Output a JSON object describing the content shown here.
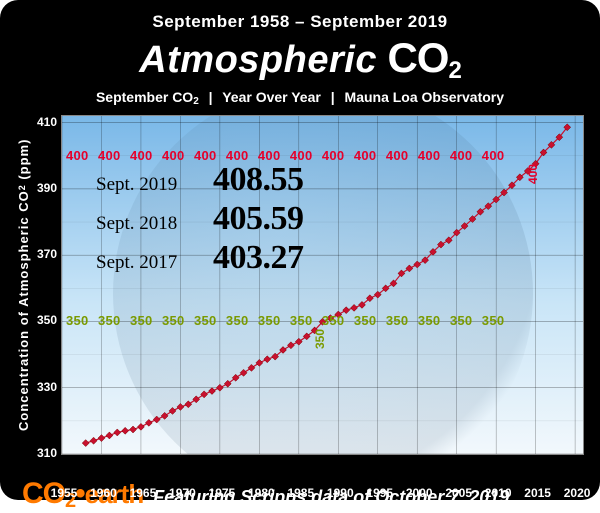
{
  "header": {
    "date_range": "September 1958 – September 2019",
    "title_word": "Atmospheric",
    "title_chem": "CO",
    "title_chem_sub": "2",
    "subtitle_a": "September CO",
    "subtitle_a_sub": "2",
    "subtitle_b": "Year Over Year",
    "subtitle_c": "Mauna Loa Observatory"
  },
  "chart": {
    "type": "scatter-line",
    "ylabel_a": "Concentration  of  Atmospheric  CO",
    "ylabel_sub": "2",
    "ylabel_b": "   (ppm)",
    "xlim": [
      1955,
      2021
    ],
    "ylim": [
      310,
      412
    ],
    "yticks": [
      310,
      330,
      350,
      370,
      390,
      410
    ],
    "xticks": [
      1955,
      1960,
      1965,
      1970,
      1975,
      1980,
      1985,
      1990,
      1995,
      2000,
      2005,
      2010,
      2015,
      2020
    ],
    "grid_color": "rgba(0,0,0,0.45)",
    "background_gradient": [
      "#7ab8e8",
      "#c9e5f7",
      "#f2f8fc"
    ],
    "ref_lines": {
      "400": {
        "value": 400,
        "color": "#e4002b",
        "label_repeat": "400",
        "cross_year": 2015
      },
      "350": {
        "value": 350,
        "color": "#7a9a01",
        "label_repeat": "350",
        "cross_year": 1988
      }
    },
    "series": {
      "color": "#c8102e",
      "marker": "diamond",
      "marker_size": 7,
      "years": [
        1958,
        1959,
        1960,
        1961,
        1962,
        1963,
        1964,
        1965,
        1966,
        1967,
        1968,
        1969,
        1970,
        1971,
        1972,
        1973,
        1974,
        1975,
        1976,
        1977,
        1978,
        1979,
        1980,
        1981,
        1982,
        1983,
        1984,
        1985,
        1986,
        1987,
        1988,
        1989,
        1990,
        1991,
        1992,
        1993,
        1994,
        1995,
        1996,
        1997,
        1998,
        1999,
        2000,
        2001,
        2002,
        2003,
        2004,
        2005,
        2006,
        2007,
        2008,
        2009,
        2010,
        2011,
        2012,
        2013,
        2014,
        2015,
        2016,
        2017,
        2018,
        2019
      ],
      "values": [
        313.3,
        314.0,
        314.8,
        315.6,
        316.5,
        317.0,
        317.4,
        318.2,
        319.4,
        320.4,
        321.5,
        323.0,
        324.2,
        325.0,
        326.5,
        328.0,
        329.0,
        330.0,
        331.2,
        333.0,
        334.5,
        336.0,
        337.5,
        338.6,
        339.4,
        341.4,
        342.8,
        343.9,
        345.5,
        347.3,
        349.9,
        351.0,
        352.1,
        353.4,
        354.1,
        355.0,
        357.0,
        358.1,
        360.0,
        361.5,
        364.5,
        366.0,
        367.2,
        368.5,
        371.0,
        373.2,
        374.5,
        376.8,
        378.8,
        380.9,
        383.1,
        384.8,
        386.8,
        388.9,
        391.1,
        393.5,
        395.4,
        397.6,
        401.0,
        403.3,
        405.6,
        408.6
      ]
    },
    "callouts": [
      {
        "label": "Sept. 2019",
        "value": "408.55"
      },
      {
        "label": "Sept. 2018",
        "value": "405.59"
      },
      {
        "label": "Sept. 2017",
        "value": "403.27"
      }
    ]
  },
  "footer": {
    "logo_co": "CO",
    "logo_2": "2",
    "logo_dot": "•",
    "logo_earth": "earth",
    "text": "Featuring Scripps  data of October 7, 2019"
  }
}
